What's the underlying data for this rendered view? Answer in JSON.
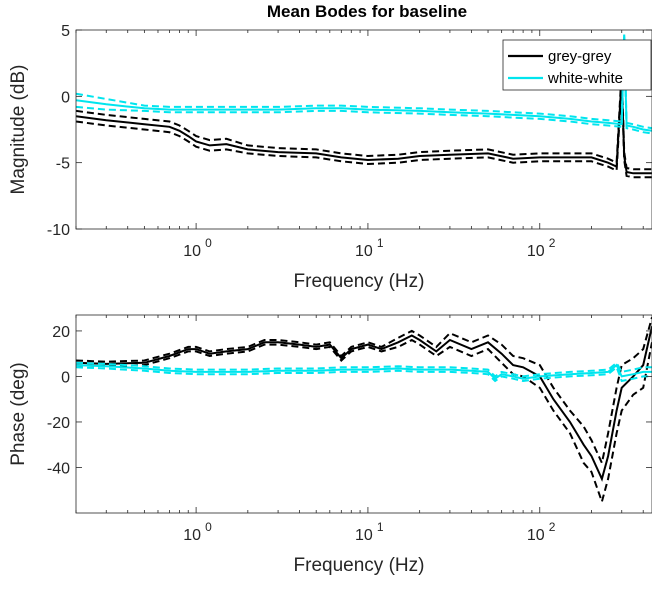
{
  "chart_data": [
    {
      "type": "line",
      "title": "Mean Bodes for baseline",
      "xlabel": "Frequency (Hz)",
      "ylabel": "Magnitude (dB)",
      "xscale": "log",
      "xlim": [
        0.2,
        450
      ],
      "ylim": [
        -10,
        5
      ],
      "xticks": [
        1,
        10,
        100
      ],
      "xtick_labels": [
        {
          "base": "10",
          "exp": "0"
        },
        {
          "base": "10",
          "exp": "1"
        },
        {
          "base": "10",
          "exp": "2"
        }
      ],
      "yticks": [
        -10,
        -5,
        0,
        5
      ],
      "ytick_labels": [
        "-10",
        "-5",
        "0",
        "5"
      ],
      "grid": false,
      "legend_position": "top-right",
      "series": [
        {
          "name": "grey-grey",
          "color": "#000000",
          "x": [
            0.2,
            0.3,
            0.5,
            0.7,
            0.8,
            0.9,
            1.0,
            1.2,
            1.5,
            2,
            3,
            5,
            7,
            10,
            15,
            20,
            30,
            50,
            70,
            100,
            150,
            200,
            250,
            280,
            300,
            310,
            320,
            350,
            400,
            450
          ],
          "y": [
            -1.5,
            -1.8,
            -2.1,
            -2.3,
            -2.6,
            -3.0,
            -3.4,
            -3.7,
            -3.6,
            -4.0,
            -4.2,
            -4.3,
            -4.6,
            -4.8,
            -4.7,
            -4.5,
            -4.4,
            -4.3,
            -4.7,
            -4.6,
            -4.6,
            -4.6,
            -5.0,
            -5.3,
            1.5,
            -4.5,
            -5.7,
            -5.8,
            -5.8,
            -5.8
          ],
          "upper": [
            -1.1,
            -1.4,
            -1.7,
            -1.9,
            -2.2,
            -2.6,
            -3.0,
            -3.3,
            -3.2,
            -3.7,
            -3.9,
            -4.0,
            -4.3,
            -4.5,
            -4.4,
            -4.2,
            -4.1,
            -4.0,
            -4.4,
            -4.3,
            -4.3,
            -4.3,
            -4.7,
            -5.0,
            2.0,
            -4.2,
            -5.4,
            -5.5,
            -5.5,
            -5.5
          ],
          "lower": [
            -1.9,
            -2.2,
            -2.5,
            -2.7,
            -3.0,
            -3.4,
            -3.8,
            -4.1,
            -4.0,
            -4.3,
            -4.5,
            -4.6,
            -4.9,
            -5.1,
            -5.0,
            -4.8,
            -4.7,
            -4.6,
            -5.0,
            -4.9,
            -4.9,
            -4.9,
            -5.3,
            -5.6,
            1.0,
            -4.8,
            -6.0,
            -6.1,
            -6.1,
            -6.1
          ]
        },
        {
          "name": "white-white",
          "color": "#00e5ee",
          "x": [
            0.2,
            0.3,
            0.5,
            0.7,
            1,
            2,
            3,
            5,
            7,
            10,
            20,
            30,
            50,
            70,
            100,
            150,
            200,
            250,
            300,
            310,
            320,
            350,
            400,
            450
          ],
          "y": [
            -0.3,
            -0.6,
            -0.9,
            -1.0,
            -1.0,
            -1.0,
            -1.0,
            -0.9,
            -0.9,
            -1.0,
            -1.1,
            -1.2,
            -1.3,
            -1.4,
            -1.5,
            -1.7,
            -1.9,
            -2.0,
            -2.1,
            4.5,
            -2.2,
            -2.3,
            -2.5,
            -2.6
          ],
          "upper": [
            0.2,
            -0.2,
            -0.7,
            -0.8,
            -0.8,
            -0.8,
            -0.8,
            -0.7,
            -0.7,
            -0.8,
            -0.9,
            -1.0,
            -1.1,
            -1.2,
            -1.3,
            -1.5,
            -1.7,
            -1.8,
            -1.9,
            4.8,
            -2.0,
            -2.1,
            -2.3,
            -2.4
          ],
          "lower": [
            -0.8,
            -1.0,
            -1.1,
            -1.2,
            -1.2,
            -1.2,
            -1.2,
            -1.1,
            -1.1,
            -1.2,
            -1.3,
            -1.4,
            -1.5,
            -1.6,
            -1.7,
            -1.9,
            -2.1,
            -2.2,
            -2.3,
            4.2,
            -2.4,
            -2.5,
            -2.7,
            -2.8
          ]
        }
      ]
    },
    {
      "type": "line",
      "xlabel": "Frequency (Hz)",
      "ylabel": "Phase (deg)",
      "xscale": "log",
      "xlim": [
        0.2,
        450
      ],
      "ylim": [
        -60,
        27
      ],
      "xticks": [
        1,
        10,
        100
      ],
      "xtick_labels": [
        {
          "base": "10",
          "exp": "0"
        },
        {
          "base": "10",
          "exp": "1"
        },
        {
          "base": "10",
          "exp": "2"
        }
      ],
      "yticks": [
        -40,
        -20,
        0,
        20
      ],
      "ytick_labels": [
        "-40",
        "-20",
        "0",
        "20"
      ],
      "grid": false,
      "series": [
        {
          "name": "grey-grey",
          "color": "#000000",
          "x": [
            0.2,
            0.3,
            0.5,
            0.7,
            0.9,
            1.0,
            1.2,
            1.5,
            2.0,
            2.5,
            3,
            4,
            5,
            6,
            7,
            8,
            10,
            12,
            15,
            18,
            20,
            25,
            30,
            40,
            50,
            60,
            70,
            80,
            100,
            120,
            150,
            180,
            200,
            230,
            250,
            280,
            300,
            350,
            400,
            450
          ],
          "y": [
            6,
            5.5,
            6,
            9,
            12,
            12,
            10,
            11,
            12,
            15,
            15,
            14,
            13,
            14,
            8,
            12,
            14,
            12,
            15,
            18,
            16,
            11,
            16,
            12,
            15,
            10,
            5,
            4,
            0,
            -10,
            -20,
            -30,
            -35,
            -45,
            -35,
            -15,
            -5,
            0,
            5,
            22
          ],
          "upper": [
            7,
            6.5,
            7,
            10,
            13,
            13,
            11,
            12,
            13,
            16,
            16,
            15,
            14,
            15,
            9,
            13,
            15,
            13,
            17,
            20,
            18,
            13,
            19,
            15,
            18,
            14,
            9,
            8,
            5,
            -5,
            -15,
            -22,
            -28,
            -38,
            -25,
            -5,
            5,
            8,
            12,
            26
          ],
          "lower": [
            5,
            4.5,
            5,
            8,
            11,
            11,
            9,
            10,
            11,
            14,
            14,
            13,
            12,
            13,
            7,
            11,
            13,
            11,
            13,
            16,
            14,
            9,
            13,
            9,
            12,
            6,
            1,
            0,
            -5,
            -15,
            -25,
            -38,
            -42,
            -55,
            -45,
            -25,
            -15,
            -8,
            -5,
            15
          ]
        },
        {
          "name": "white-white",
          "color": "#00e5ee",
          "x": [
            0.2,
            0.3,
            0.5,
            0.7,
            1,
            2,
            3,
            5,
            7,
            10,
            15,
            20,
            30,
            40,
            50,
            55,
            60,
            70,
            80,
            100,
            150,
            200,
            250,
            280,
            300,
            350,
            400,
            450
          ],
          "y": [
            5,
            4.5,
            3.5,
            2.5,
            2,
            2,
            2.5,
            2.5,
            3,
            3,
            3.5,
            3,
            3,
            2.5,
            2,
            -1,
            1,
            0,
            -1,
            0,
            1,
            1.5,
            2,
            5,
            0,
            1,
            2,
            2
          ],
          "upper": [
            6,
            5.5,
            4.5,
            3.5,
            3,
            3,
            3.5,
            3.5,
            4,
            4,
            4.5,
            4,
            4,
            3.5,
            3,
            0,
            2,
            1,
            0,
            1,
            2,
            2.5,
            3,
            6,
            2,
            3,
            4,
            4
          ],
          "lower": [
            4,
            3.5,
            2.5,
            1.5,
            1,
            1,
            1.5,
            1.5,
            2,
            2,
            2.5,
            2,
            2,
            1.5,
            1,
            -2,
            0,
            -1,
            -2,
            -1,
            0,
            0.5,
            1,
            4,
            -2,
            -1,
            0,
            0
          ]
        }
      ]
    }
  ]
}
